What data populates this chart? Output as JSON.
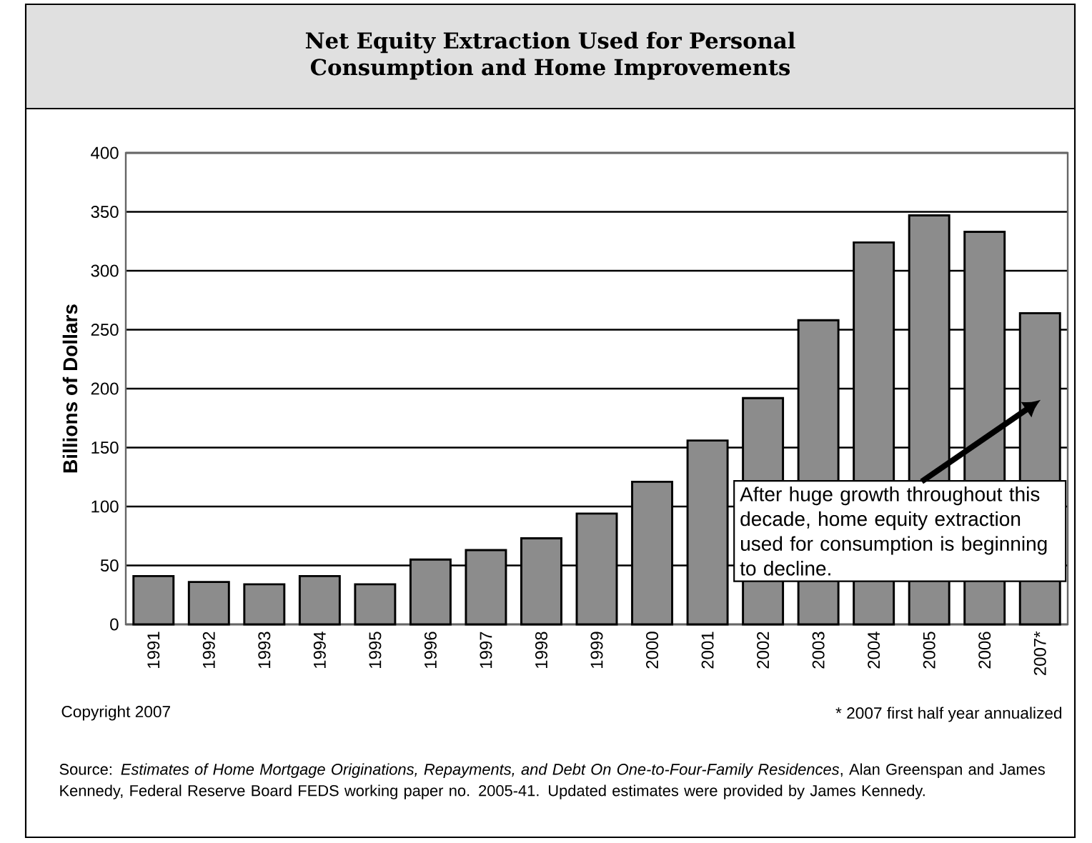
{
  "chart_data": {
    "type": "bar",
    "title": "Net Equity Extraction Used for Personal Consumption and Home Improvements",
    "ylabel": "Billions of Dollars",
    "categories": [
      "1991",
      "1992",
      "1993",
      "1994",
      "1995",
      "1996",
      "1997",
      "1998",
      "1999",
      "2000",
      "2001",
      "2002",
      "2003",
      "2004",
      "2005",
      "2006",
      "2007*"
    ],
    "values": [
      41,
      36,
      34,
      41,
      34,
      55,
      63,
      73,
      94,
      121,
      156,
      192,
      258,
      324,
      347,
      333,
      264
    ],
    "color": "#8c8c8c",
    "ylim": [
      0,
      400
    ],
    "yticks": [
      0,
      50,
      100,
      150,
      200,
      250,
      300,
      350,
      400
    ],
    "grid": "y",
    "annotations": [
      "After huge growth throughout this decade, home equity extraction used for consumption is beginning to decline.",
      "Copyright 2007",
      "* 2007 first half year annualized",
      "Source: *Estimates of Home Mortgage Originations, Repayments, and Debt On One-to-Four-Family Residences*, Alan Greenspan and James Kennedy, Federal Reserve Board FEDS working paper no. 2005-41. Updated estimates were provided by James Kennedy."
    ]
  }
}
